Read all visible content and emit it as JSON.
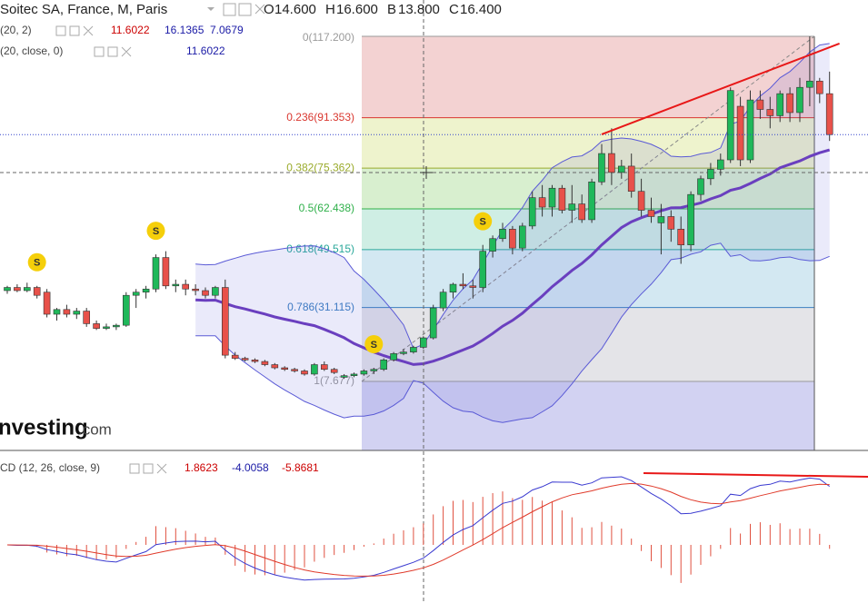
{
  "header": {
    "title": "Soitec SA, France, M, Paris",
    "ohlc": [
      {
        "key": "O",
        "value": "14.600"
      },
      {
        "key": "H",
        "value": "16.600"
      },
      {
        "key": "B",
        "value": "13.800"
      },
      {
        "key": "C",
        "value": "16.400"
      }
    ]
  },
  "indicators": [
    {
      "name": "(20, 2)",
      "values": [
        "11.6022",
        "16.1365",
        "7.0679"
      ],
      "colors": [
        "#cc0000",
        "#1a1aa6",
        "#1a1aa6"
      ]
    },
    {
      "name": "(20, close, 0)",
      "values": [
        "11.6022"
      ],
      "colors": [
        "#1a1aa6"
      ]
    },
    {
      "name": "CD (12, 26, close, 9)",
      "values": [
        "1.8623",
        "-4.0058",
        "-5.8681"
      ],
      "colors": [
        "#cc0000",
        "#1a1aa6",
        "#cc0000"
      ]
    }
  ],
  "logo": [
    "nvesting",
    ".com"
  ],
  "chart_data": {
    "type": "candlestick",
    "up_color": "#1fb85a",
    "down_color": "#e8514a",
    "fib_levels": [
      {
        "label": "0(117.200)",
        "value": 117.2,
        "color": "#9a9a9a",
        "fill": "#f3d2d2"
      },
      {
        "label": "0.236(91.353)",
        "value": 91.353,
        "color": "#d9372f",
        "fill": "#eef3cd"
      },
      {
        "label": "0.382(75.362)",
        "value": 75.362,
        "color": "#9aab2c",
        "fill": "#d8efcf"
      },
      {
        "label": "0.5(62.438)",
        "value": 62.438,
        "color": "#2fb04a",
        "fill": "#cfeee4"
      },
      {
        "label": "0.618(49.515)",
        "value": 49.515,
        "color": "#2aa89a",
        "fill": "#d3e8f2"
      },
      {
        "label": "0.786(31.115)",
        "value": 31.115,
        "color": "#3a7fc0",
        "fill": "#e4e4e8"
      },
      {
        "label": "1(7.677)",
        "value": 7.677,
        "color": "#9a9a9a",
        "fill": "#d2d2f2"
      }
    ],
    "candles": [
      [
        36.5,
        38,
        35.5,
        37.5
      ],
      [
        37.5,
        38.5,
        36,
        36.5
      ],
      [
        36.5,
        39,
        36,
        37.5
      ],
      [
        37.5,
        38,
        34,
        35
      ],
      [
        36,
        37,
        28,
        29
      ],
      [
        29,
        31,
        27,
        30.5
      ],
      [
        30.5,
        32,
        28,
        29
      ],
      [
        29,
        31,
        27.5,
        30
      ],
      [
        30,
        31,
        25,
        26
      ],
      [
        26,
        27,
        24,
        24.5
      ],
      [
        24.5,
        26,
        24,
        25
      ],
      [
        25,
        26,
        24,
        25.5
      ],
      [
        25.5,
        36,
        25,
        35
      ],
      [
        35,
        37,
        31,
        36
      ],
      [
        36,
        38,
        34,
        37
      ],
      [
        37,
        48,
        36,
        47
      ],
      [
        47,
        49,
        37,
        38
      ],
      [
        38,
        40,
        36,
        38.5
      ],
      [
        38.5,
        40,
        35,
        37
      ],
      [
        37,
        38.5,
        35,
        36.5
      ],
      [
        36.5,
        37.5,
        34,
        35
      ],
      [
        35,
        38,
        34,
        37.5
      ],
      [
        37.5,
        40,
        15,
        16
      ],
      [
        16,
        17,
        14.5,
        15
      ],
      [
        15,
        15.5,
        14,
        14.5
      ],
      [
        14.5,
        15,
        13.5,
        14
      ],
      [
        14,
        14.5,
        12.5,
        13
      ],
      [
        13,
        13.5,
        11.5,
        12
      ],
      [
        12,
        12.5,
        11,
        11.5
      ],
      [
        11.5,
        12,
        10.5,
        11
      ],
      [
        11,
        11.5,
        9.5,
        10
      ],
      [
        10,
        13.5,
        9.5,
        13
      ],
      [
        13,
        14,
        11,
        11.5
      ],
      [
        11.5,
        12,
        10,
        10.5
      ],
      [
        9,
        10,
        8.5,
        9.5
      ],
      [
        9.5,
        10.5,
        9,
        10
      ],
      [
        10,
        11.5,
        9.5,
        11
      ],
      [
        11,
        12,
        10,
        11.5
      ],
      [
        11.5,
        15,
        11,
        14.5
      ],
      [
        14.5,
        17,
        14,
        16.5
      ],
      [
        16.5,
        18,
        16,
        17
      ],
      [
        17,
        19,
        16.5,
        18.5
      ],
      [
        18.5,
        22,
        18,
        21.5
      ],
      [
        21.5,
        32,
        21,
        31
      ],
      [
        31,
        37,
        30,
        36
      ],
      [
        36,
        39,
        34,
        38.5
      ],
      [
        38.5,
        42,
        37,
        38
      ],
      [
        38,
        40,
        34,
        37.5
      ],
      [
        37.5,
        51,
        36,
        49
      ],
      [
        49,
        54,
        47,
        53
      ],
      [
        53,
        58,
        52,
        56
      ],
      [
        56,
        57,
        48,
        50
      ],
      [
        50,
        58,
        49,
        57
      ],
      [
        57,
        68,
        56,
        66
      ],
      [
        66,
        70,
        60,
        63
      ],
      [
        63,
        70,
        60,
        69
      ],
      [
        69,
        70,
        61,
        62
      ],
      [
        62,
        70,
        58,
        64
      ],
      [
        64,
        67,
        58,
        59
      ],
      [
        59,
        72,
        58,
        71
      ],
      [
        71,
        83,
        70,
        80
      ],
      [
        80,
        88,
        70,
        74
      ],
      [
        74,
        78,
        72,
        76
      ],
      [
        76,
        80,
        66,
        68
      ],
      [
        68,
        72,
        60,
        62
      ],
      [
        62,
        66,
        58,
        60
      ],
      [
        58,
        64,
        48,
        60
      ],
      [
        60,
        62,
        52,
        56
      ],
      [
        56,
        60,
        45,
        51
      ],
      [
        51,
        68,
        49,
        67
      ],
      [
        67,
        73,
        65,
        72
      ],
      [
        72,
        77,
        70,
        75
      ],
      [
        75,
        80,
        73,
        78
      ],
      [
        78,
        101,
        77,
        100
      ],
      [
        95,
        98,
        76,
        78
      ],
      [
        78,
        100,
        77,
        97
      ],
      [
        97,
        100,
        91,
        94
      ],
      [
        94,
        98,
        88,
        92
      ],
      [
        92,
        100,
        90,
        99
      ],
      [
        99,
        101,
        90,
        93
      ],
      [
        93,
        104,
        90,
        101
      ],
      [
        101,
        117.2,
        95,
        103
      ],
      [
        103,
        104,
        96,
        99
      ],
      [
        99,
        106,
        84,
        86
      ]
    ],
    "signals": [
      {
        "index": 3,
        "label": "S"
      },
      {
        "index": 15,
        "label": "S"
      },
      {
        "index": 37,
        "label": "S"
      },
      {
        "index": 48,
        "label": "S"
      }
    ],
    "trendline": {
      "from": {
        "index": 60,
        "value": 86.1
      },
      "to": {
        "index": 84,
        "value": 114.9
      },
      "color": "#e81818"
    },
    "ma_color": "#6a3fbf",
    "band_color": "#5a5ad6"
  }
}
